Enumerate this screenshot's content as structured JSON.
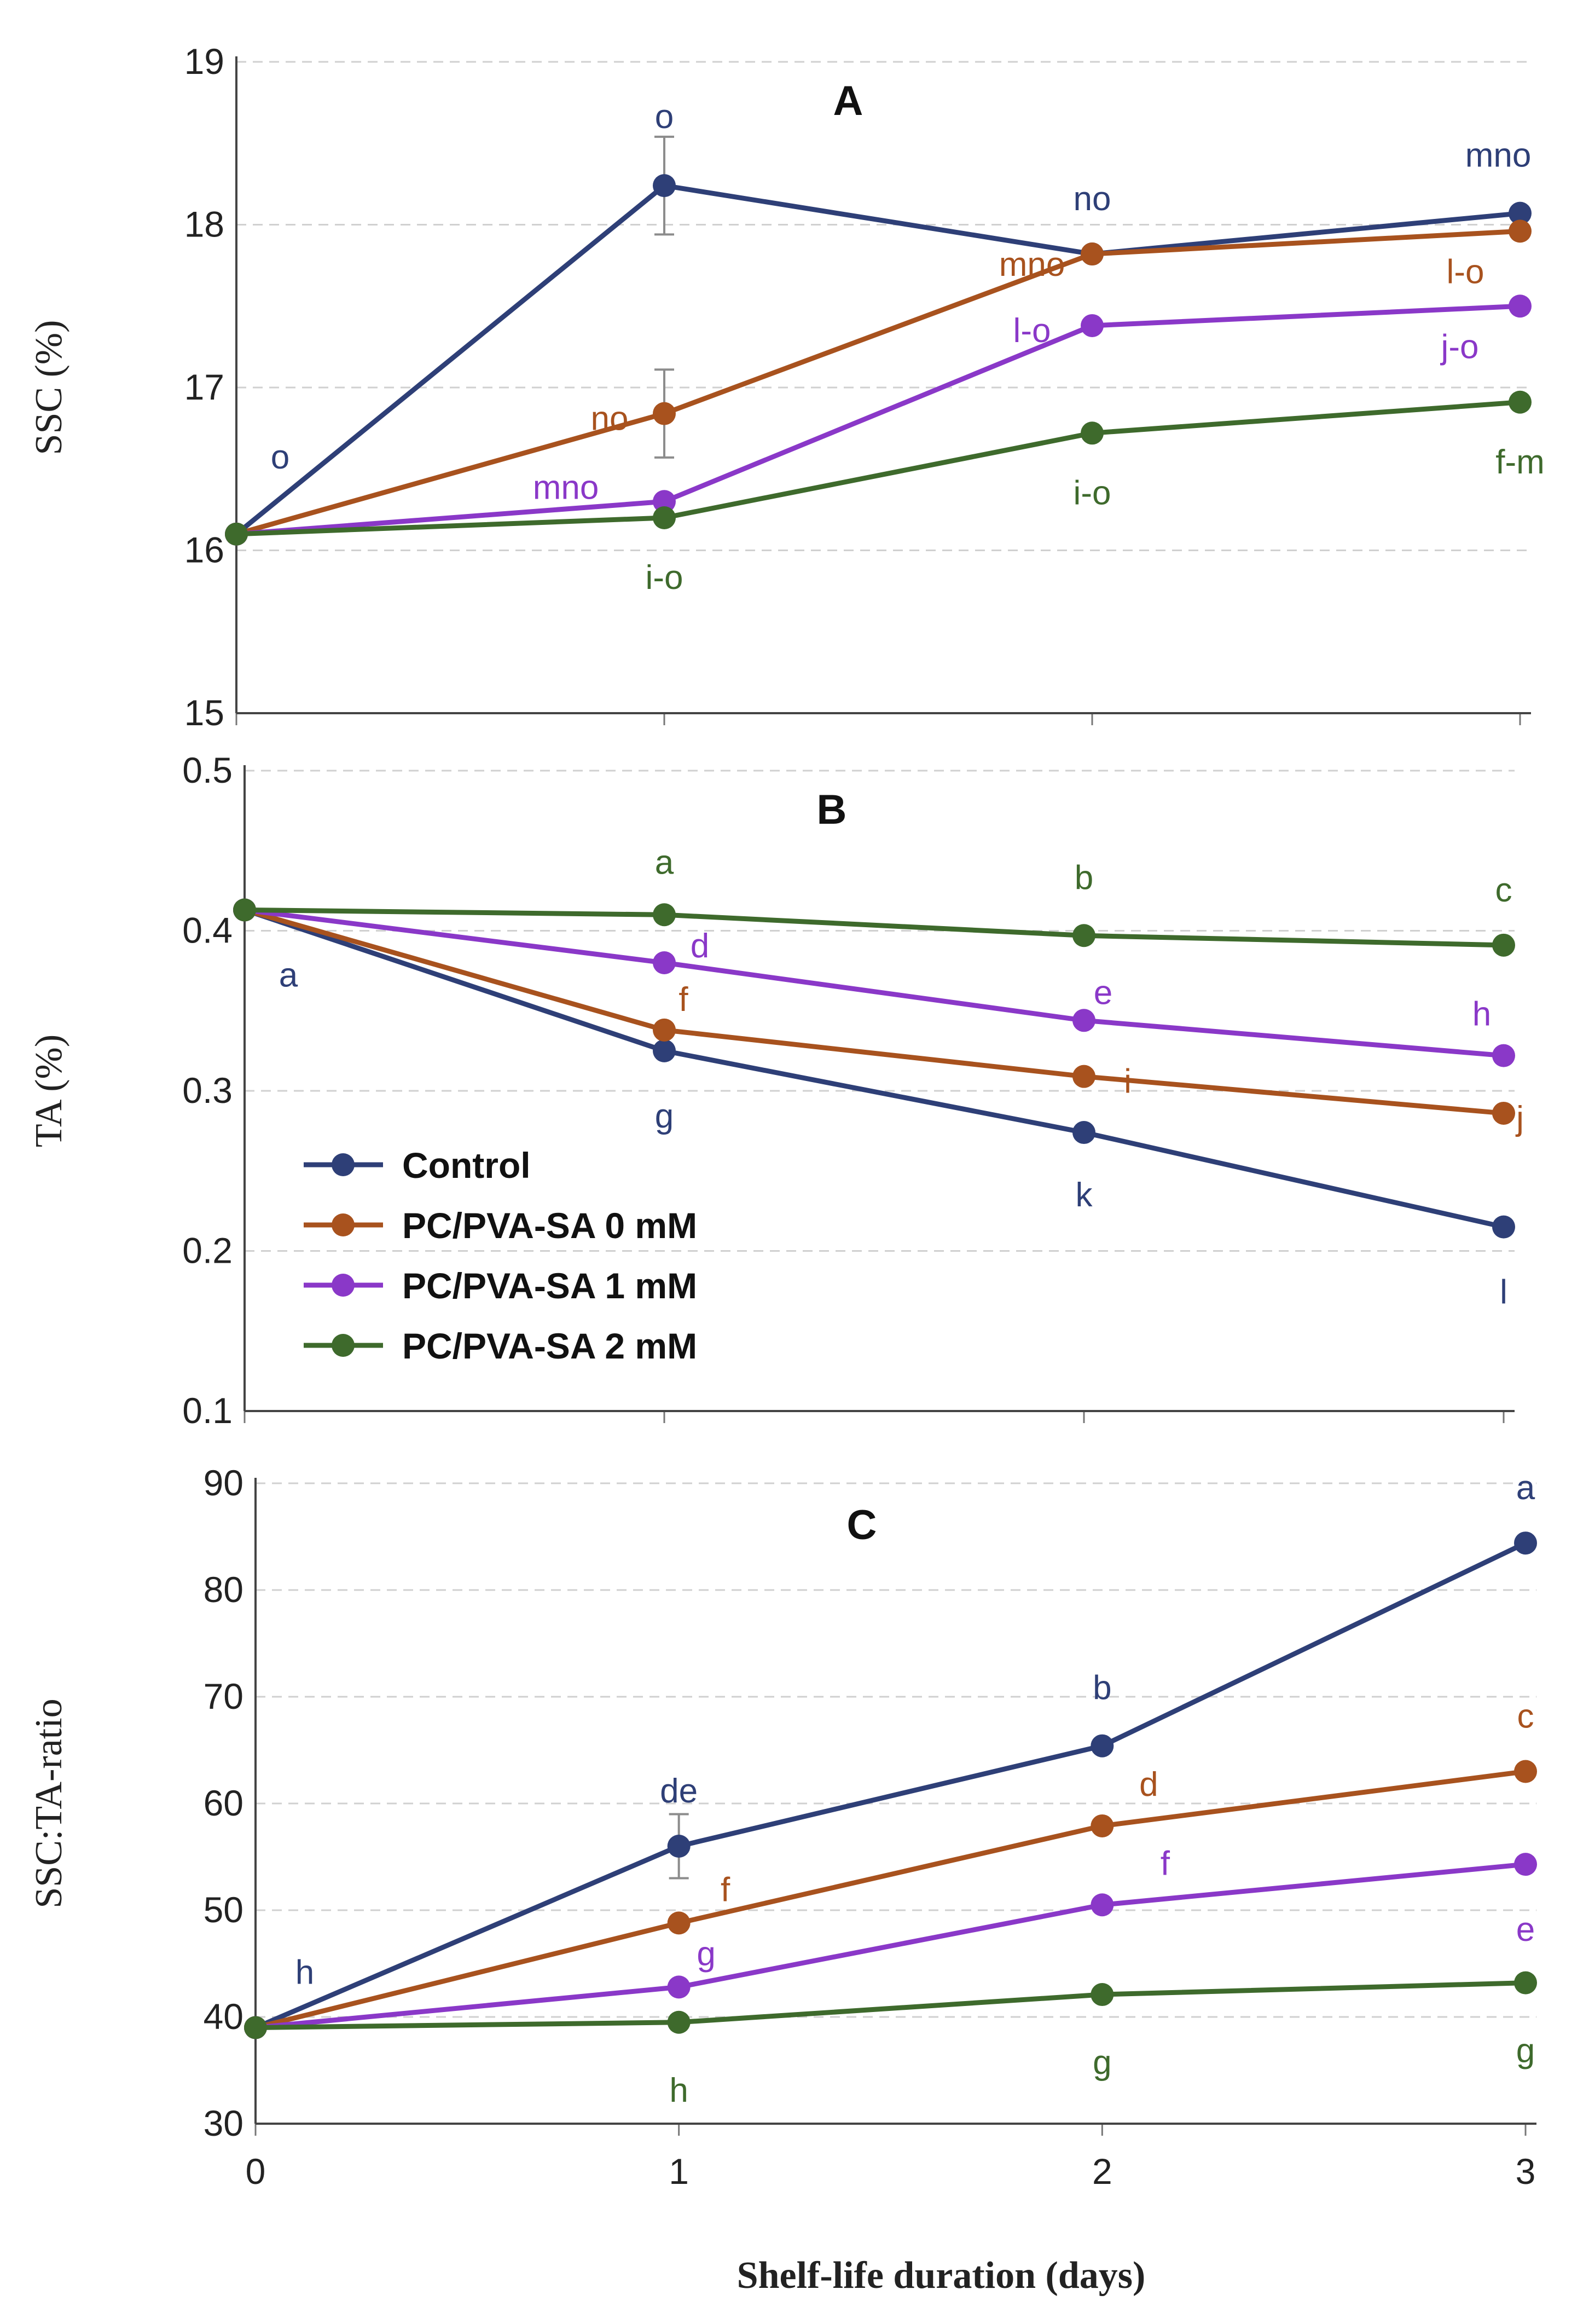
{
  "chart_data": [
    {
      "type": "line",
      "title": "A",
      "ylabel": "SSC (%)",
      "xlabel": "",
      "ylim": [
        15,
        19
      ],
      "yticks": [
        15,
        16,
        17,
        18,
        19
      ],
      "x": [
        0,
        1,
        2,
        3
      ],
      "xtick_labels": [],
      "grid": "horizontal-dashed",
      "series": [
        {
          "name": "Control",
          "color": "#2e3f77",
          "values": [
            16.1,
            18.24,
            17.82,
            18.07
          ],
          "errors": [
            0,
            0.3,
            0,
            0
          ],
          "labels": [
            "o",
            "o",
            "no",
            "mno"
          ]
        },
        {
          "name": "PC/PVA-SA 0 mM",
          "color": "#a8521e",
          "values": [
            16.1,
            16.84,
            17.82,
            17.96
          ],
          "errors": [
            0,
            0.27,
            0,
            0
          ],
          "labels": [
            "",
            "no",
            "mno",
            "l-o"
          ]
        },
        {
          "name": "PC/PVA-SA 1 mM",
          "color": "#8a38c8",
          "values": [
            16.1,
            16.3,
            17.38,
            17.5
          ],
          "errors": [
            0,
            0,
            0,
            0
          ],
          "labels": [
            "",
            "mno",
            "l-o",
            "j-o"
          ]
        },
        {
          "name": "PC/PVA-SA 2 mM",
          "color": "#3e6a2c",
          "values": [
            16.1,
            16.2,
            16.72,
            16.91
          ],
          "errors": [
            0,
            0,
            0,
            0
          ],
          "labels": [
            "",
            "i-o",
            "i-o",
            "f-m"
          ]
        }
      ]
    },
    {
      "type": "line",
      "title": "B",
      "ylabel": "TA (%)",
      "xlabel": "",
      "ylim": [
        0.1,
        0.5
      ],
      "yticks": [
        "0.1",
        "0.2",
        "0.3",
        "0.4",
        "0.5"
      ],
      "x": [
        0,
        1,
        2,
        3
      ],
      "xtick_labels": [],
      "grid": "horizontal-dashed",
      "legend": "bottom-left",
      "series": [
        {
          "name": "Control",
          "color": "#2e3f77",
          "values": [
            0.413,
            0.325,
            0.274,
            0.215
          ],
          "labels": [
            "a",
            "g",
            "k",
            "l"
          ]
        },
        {
          "name": "PC/PVA-SA 0 mM",
          "color": "#a8521e",
          "values": [
            0.413,
            0.338,
            0.309,
            0.286
          ],
          "labels": [
            "",
            "f",
            "i",
            "j"
          ]
        },
        {
          "name": "PC/PVA-SA 1 mM",
          "color": "#8a38c8",
          "values": [
            0.413,
            0.38,
            0.344,
            0.322
          ],
          "labels": [
            "",
            "d",
            "e",
            "h"
          ]
        },
        {
          "name": "PC/PVA-SA 2 mM",
          "color": "#3e6a2c",
          "values": [
            0.413,
            0.41,
            0.397,
            0.391
          ],
          "labels": [
            "",
            "a",
            "b",
            "c"
          ]
        }
      ]
    },
    {
      "type": "line",
      "title": "C",
      "ylabel": "SSC:TA-ratio",
      "xlabel": "Shelf-life duration (days)",
      "ylim": [
        30,
        90
      ],
      "yticks": [
        30,
        40,
        50,
        60,
        70,
        80,
        90
      ],
      "x": [
        0,
        1,
        2,
        3
      ],
      "xtick_labels": [
        "0",
        "1",
        "2",
        "3"
      ],
      "grid": "horizontal-dashed",
      "series": [
        {
          "name": "Control",
          "color": "#2e3f77",
          "values": [
            39.0,
            56.0,
            65.4,
            84.4
          ],
          "errors": [
            0,
            3,
            0,
            0
          ],
          "labels": [
            "h",
            "de",
            "b",
            "a"
          ]
        },
        {
          "name": "PC/PVA-SA 0 mM",
          "color": "#a8521e",
          "values": [
            39.0,
            48.8,
            57.9,
            63.0
          ],
          "errors": [
            0,
            0,
            0,
            0
          ],
          "labels": [
            "",
            "f",
            "d",
            "c"
          ]
        },
        {
          "name": "PC/PVA-SA 1 mM",
          "color": "#8a38c8",
          "values": [
            39.0,
            42.8,
            50.5,
            54.3
          ],
          "errors": [
            0,
            0,
            0,
            0
          ],
          "labels": [
            "",
            "g",
            "f",
            "e"
          ]
        },
        {
          "name": "PC/PVA-SA 2 mM",
          "color": "#3e6a2c",
          "values": [
            39.0,
            39.5,
            42.1,
            43.2
          ],
          "errors": [
            0,
            0,
            0,
            0
          ],
          "labels": [
            "",
            "h",
            "g",
            "g"
          ]
        }
      ]
    }
  ]
}
